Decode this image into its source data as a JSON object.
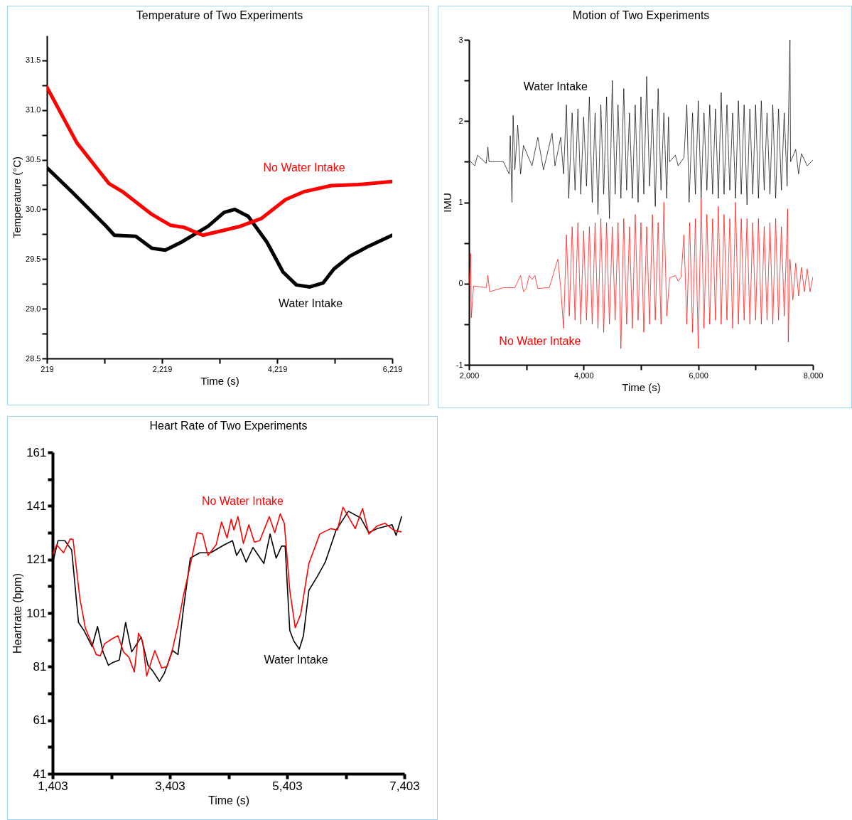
{
  "chart_data": [
    {
      "type": "line",
      "title": "Temperature of Two Experiments",
      "xlabel": "Time (s)",
      "ylabel": "Temperature (°C)",
      "xlim": [
        219,
        6219
      ],
      "ylim": [
        28.5,
        31.75
      ],
      "xticks": [
        {
          "value": 219,
          "label": "219"
        },
        {
          "value": 1219,
          "label": null
        },
        {
          "value": 2219,
          "label": "2,219"
        },
        {
          "value": 3219,
          "label": null
        },
        {
          "value": 4219,
          "label": "4,219"
        },
        {
          "value": 5219,
          "label": null
        },
        {
          "value": 6219,
          "label": "6,219"
        }
      ],
      "yticks": [
        {
          "value": 28.5,
          "label": "28.5"
        },
        {
          "value": 28.75,
          "label": null
        },
        {
          "value": 29,
          "label": "29.0"
        },
        {
          "value": 29.25,
          "label": null
        },
        {
          "value": 29.5,
          "label": "29.5"
        },
        {
          "value": 29.75,
          "label": null
        },
        {
          "value": 30,
          "label": "30.0"
        },
        {
          "value": 30.25,
          "label": null
        },
        {
          "value": 30.5,
          "label": "30.5"
        },
        {
          "value": 30.75,
          "label": null
        },
        {
          "value": 31,
          "label": "31.0"
        },
        {
          "value": 31.25,
          "label": null
        },
        {
          "value": 31.5,
          "label": "31.5"
        }
      ],
      "series": [
        {
          "name": "Water Intake",
          "color": "#000000",
          "x": [
            219,
            647,
            786,
            1251,
            1391,
            1763,
            2042,
            2275,
            2554,
            3019,
            3298,
            3484,
            3717,
            4042,
            4321,
            4554,
            4787,
            5019,
            5205,
            5484,
            5810,
            6219
          ],
          "values": [
            30.42,
            30.18,
            30.1,
            29.83,
            29.74,
            29.73,
            29.61,
            29.59,
            29.67,
            29.83,
            29.97,
            30.0,
            29.93,
            29.67,
            29.37,
            29.24,
            29.22,
            29.26,
            29.4,
            29.53,
            29.63,
            29.74
          ]
        },
        {
          "name": "No Water Intake",
          "color": "#ff0000",
          "x": [
            219,
            740,
            1298,
            1530,
            2042,
            2368,
            2600,
            2926,
            3298,
            3577,
            3949,
            4368,
            4694,
            5159,
            5624,
            6219
          ],
          "values": [
            31.23,
            30.67,
            30.26,
            30.18,
            29.95,
            29.84,
            29.82,
            29.74,
            29.79,
            29.83,
            29.91,
            30.1,
            30.18,
            30.24,
            30.25,
            30.28
          ]
        }
      ]
    },
    {
      "type": "line",
      "title": "Motion of Two Experiments",
      "xlabel": "Time (s)",
      "ylabel": "IMU",
      "xlim": [
        2000,
        8000
      ],
      "ylim": [
        -1,
        3
      ],
      "xticks": [
        {
          "value": 2000,
          "label": "2,000"
        },
        {
          "value": 3000,
          "label": null
        },
        {
          "value": 4000,
          "label": "4,000"
        },
        {
          "value": 5000,
          "label": null
        },
        {
          "value": 6000,
          "label": "6,000"
        },
        {
          "value": 7000,
          "label": null
        },
        {
          "value": 8000,
          "label": "8,000"
        }
      ],
      "yticks": [
        -1,
        {
          "value": -0.5,
          "label": null
        },
        0,
        {
          "value": 0.5,
          "label": null
        },
        1,
        {
          "value": 1.5,
          "label": null
        },
        2,
        {
          "value": 2.5,
          "label": null
        },
        3
      ],
      "series": [
        {
          "name": "Water Intake",
          "color": "#000000",
          "x": [
            2000,
            2100,
            2150,
            2300,
            2330,
            2350,
            2600,
            2700,
            2720,
            2750,
            2770,
            2800,
            2850,
            2900,
            2950,
            3100,
            3200,
            3300,
            3450,
            3500,
            3600,
            3650,
            3700,
            3740,
            3800,
            3850,
            3900,
            3950,
            4000,
            4050,
            4100,
            4150,
            4200,
            4250,
            4300,
            4350,
            4400,
            4450,
            4500,
            4550,
            4600,
            4650,
            4700,
            4750,
            4800,
            4850,
            4900,
            4950,
            5000,
            5050,
            5100,
            5150,
            5200,
            5250,
            5300,
            5350,
            5400,
            5450,
            5480,
            5500,
            5600,
            5650,
            5750,
            5800,
            5840,
            5900,
            5950,
            6000,
            6050,
            6100,
            6150,
            6200,
            6250,
            6300,
            6350,
            6400,
            6450,
            6500,
            6550,
            6600,
            6650,
            6700,
            6750,
            6800,
            6850,
            6900,
            6950,
            7000,
            7050,
            7100,
            7150,
            7200,
            7250,
            7300,
            7350,
            7400,
            7450,
            7500,
            7550,
            7600,
            7610,
            7700,
            7750,
            7800,
            7900,
            8000
          ],
          "values": [
            1.52,
            1.45,
            1.58,
            1.48,
            1.68,
            1.5,
            1.5,
            1.35,
            1.82,
            1.0,
            2.07,
            1.4,
            1.95,
            1.35,
            1.7,
            1.45,
            1.8,
            1.4,
            1.85,
            1.45,
            1.8,
            1.35,
            2.2,
            1.05,
            2.1,
            1.15,
            2.15,
            1.1,
            2.05,
            1.2,
            2.3,
            1.0,
            2.1,
            0.85,
            2.2,
            1.1,
            2.3,
            0.8,
            2.5,
            1.1,
            2.2,
            1.05,
            2.4,
            1.15,
            2.1,
            1.05,
            2.2,
            1.0,
            2.3,
            1.1,
            2.55,
            1.2,
            2.15,
            0.95,
            2.4,
            1.15,
            2.1,
            1.05,
            2.05,
            1.5,
            1.58,
            1.45,
            1.55,
            2.2,
            1.0,
            2.1,
            1.1,
            2.25,
            1.05,
            2.1,
            1.15,
            2.2,
            1.1,
            2.15,
            1.05,
            2.35,
            1.1,
            2.2,
            1.15,
            2.1,
            1.05,
            2.25,
            1.1,
            2.2,
            0.97,
            2.15,
            1.1,
            2.2,
            1.05,
            2.25,
            1.15,
            2.1,
            1.1,
            2.2,
            1.05,
            2.15,
            1.15,
            2.1,
            1.2,
            3.0,
            1.5,
            1.65,
            1.35,
            1.6,
            1.45,
            1.52
          ]
        },
        {
          "name": "No Water Intake",
          "color": "#ff0000",
          "x": [
            2000,
            2030,
            2040,
            2080,
            2300,
            2330,
            2360,
            2600,
            2800,
            2900,
            2950,
            3000,
            3050,
            3100,
            3150,
            3200,
            3400,
            3550,
            3600,
            3650,
            3700,
            3750,
            3800,
            3850,
            3900,
            3950,
            4000,
            4050,
            4100,
            4150,
            4200,
            4250,
            4300,
            4350,
            4400,
            4450,
            4500,
            4550,
            4600,
            4650,
            4700,
            4750,
            4800,
            4850,
            4900,
            4950,
            5000,
            5050,
            5100,
            5150,
            5200,
            5250,
            5300,
            5350,
            5400,
            5450,
            5500,
            5600,
            5650,
            5700,
            5750,
            5800,
            5850,
            5900,
            5950,
            6000,
            6050,
            6100,
            6150,
            6200,
            6250,
            6300,
            6350,
            6400,
            6450,
            6500,
            6550,
            6600,
            6650,
            6700,
            6750,
            6800,
            6850,
            6900,
            6950,
            7000,
            7050,
            7100,
            7150,
            7200,
            7250,
            7300,
            7350,
            7400,
            7450,
            7500,
            7560,
            7570,
            7600,
            7650,
            7700,
            7750,
            7800,
            7850,
            7900,
            7950,
            8000
          ],
          "values": [
            -0.02,
            0.37,
            -0.42,
            -0.03,
            -0.05,
            0.1,
            -0.1,
            -0.05,
            -0.05,
            0.1,
            -0.1,
            -0.06,
            0.1,
            0.05,
            0.1,
            -0.06,
            -0.05,
            0.3,
            -0.05,
            -0.55,
            0.6,
            -0.4,
            0.7,
            -0.45,
            0.75,
            -0.5,
            0.65,
            -0.45,
            0.7,
            -0.5,
            0.75,
            -0.55,
            0.8,
            -0.6,
            0.75,
            -0.5,
            0.7,
            -0.45,
            0.75,
            -0.8,
            0.8,
            -0.5,
            0.7,
            -0.55,
            0.85,
            -0.45,
            0.75,
            -0.6,
            0.7,
            -0.5,
            0.85,
            -0.45,
            0.75,
            -0.5,
            1.0,
            -0.4,
            0.07,
            0.1,
            0.03,
            0.08,
            0.6,
            -0.5,
            0.75,
            -0.6,
            0.8,
            -0.8,
            1.05,
            -0.55,
            0.85,
            -0.5,
            0.8,
            -0.45,
            0.95,
            -0.5,
            0.85,
            -0.45,
            0.8,
            -0.55,
            1.0,
            -0.5,
            0.8,
            -0.45,
            0.8,
            -0.5,
            0.75,
            -0.45,
            0.8,
            -0.5,
            0.7,
            -0.45,
            0.75,
            -0.5,
            0.8,
            -0.45,
            0.7,
            -0.4,
            0.92,
            -0.72,
            0.3,
            -0.2,
            0.25,
            -0.15,
            0.2,
            -0.1,
            0.18,
            -0.1,
            0.08
          ]
        }
      ]
    },
    {
      "type": "line",
      "title": "Heart Rate of Two Experiments",
      "xlabel": "Time (s)",
      "ylabel": "Heartrate (bpm)",
      "xlim": [
        1403,
        7403
      ],
      "ylim": [
        41,
        161
      ],
      "xticks": [
        {
          "value": 1403,
          "label": "1,403"
        },
        {
          "value": 2403,
          "label": null
        },
        {
          "value": 3403,
          "label": "3,403"
        },
        {
          "value": 4403,
          "label": null
        },
        {
          "value": 5403,
          "label": "5,403"
        },
        {
          "value": 6403,
          "label": null
        },
        {
          "value": 7403,
          "label": "7,403"
        }
      ],
      "yticks": [
        41,
        {
          "value": 51,
          "label": null
        },
        61,
        {
          "value": 71,
          "label": null
        },
        81,
        {
          "value": 91,
          "label": null
        },
        101,
        {
          "value": 111,
          "label": null
        },
        121,
        {
          "value": 131,
          "label": null
        },
        141,
        {
          "value": 151,
          "label": null
        },
        161
      ],
      "series": [
        {
          "name": "Water Intake",
          "color": "#000000",
          "x": [
            1403,
            1496,
            1612,
            1729,
            1845,
            1938,
            2077,
            2170,
            2263,
            2356,
            2426,
            2542,
            2649,
            2752,
            2915,
            3031,
            3124,
            3226,
            3310,
            3449,
            3542,
            3635,
            3752,
            3914,
            4100,
            4333,
            4472,
            4542,
            4612,
            4705,
            4821,
            5007,
            5114,
            5217,
            5310,
            5370,
            5449,
            5519,
            5612,
            5682,
            5775,
            5915,
            6054,
            6240,
            6449,
            6659,
            6798,
            6938,
            7194,
            7263,
            7356
          ],
          "values": [
            119.5,
            128,
            128,
            124.5,
            97.5,
            94.5,
            88.5,
            96,
            86.5,
            81.5,
            82.5,
            83.5,
            97.5,
            86.5,
            92,
            81.5,
            79,
            75.5,
            78.5,
            87,
            85.5,
            102.5,
            121.5,
            123.5,
            123.5,
            126.5,
            128,
            122.5,
            125,
            120,
            125.5,
            119.5,
            130.5,
            121.5,
            126,
            126,
            94.5,
            90.5,
            87.5,
            92.5,
            109.5,
            114.5,
            120,
            132,
            139,
            136.5,
            131,
            132.5,
            134,
            130,
            137
          ]
        },
        {
          "name": "No Water Intake",
          "color": "#ff0000",
          "x": [
            1403,
            1473,
            1589,
            1705,
            1752,
            1868,
            1961,
            2054,
            2147,
            2217,
            2287,
            2426,
            2519,
            2612,
            2705,
            2798,
            2868,
            2938,
            3008,
            3147,
            3263,
            3356,
            3449,
            3542,
            3635,
            3728,
            3868,
            3961,
            4054,
            4193,
            4286,
            4379,
            4449,
            4496,
            4565,
            4658,
            4751,
            4844,
            4937,
            5100,
            5193,
            5286,
            5356,
            5449,
            5542,
            5635,
            5775,
            5961,
            6147,
            6263,
            6356,
            6565,
            6691,
            6798,
            6938,
            7077,
            7217,
            7347
          ],
          "values": [
            123,
            126.5,
            123.5,
            128.7,
            128.5,
            106.5,
            95.5,
            90.5,
            85.5,
            85,
            89.5,
            91.5,
            92.5,
            86.5,
            84.5,
            79,
            93.5,
            90.5,
            77.5,
            87,
            80.5,
            81,
            87.5,
            96.5,
            107.5,
            116.5,
            131,
            130.5,
            122.5,
            126.5,
            135,
            129,
            136,
            132,
            137,
            127,
            134,
            127.5,
            128,
            137,
            131,
            138,
            134.5,
            109.5,
            95.5,
            100.5,
            119.5,
            130.5,
            132.5,
            132,
            140.5,
            132.5,
            140,
            130.5,
            133.5,
            134.5,
            132,
            131.3
          ]
        }
      ]
    }
  ]
}
